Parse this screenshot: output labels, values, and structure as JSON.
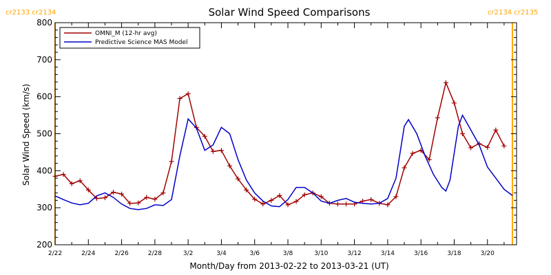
{
  "chart_data": {
    "type": "line",
    "title": "Solar Wind Speed Comparisons",
    "xlabel": "Month/Day from 2013-02-22 to 2013-03-21 (UT)",
    "ylabel": "Solar Wind Speed (km/s)",
    "x_domain": [
      "2013-02-22",
      "2013-03-21T18:00"
    ],
    "ylim": [
      200,
      800
    ],
    "yticks": [
      200,
      300,
      400,
      500,
      600,
      700,
      800
    ],
    "xticks": [
      {
        "date": "2013-02-22",
        "label": "2/22"
      },
      {
        "date": "2013-02-24",
        "label": "2/24"
      },
      {
        "date": "2013-02-26",
        "label": "2/26"
      },
      {
        "date": "2013-02-28",
        "label": "2/28"
      },
      {
        "date": "2013-03-02",
        "label": "3/2"
      },
      {
        "date": "2013-03-04",
        "label": "3/4"
      },
      {
        "date": "2013-03-06",
        "label": "3/6"
      },
      {
        "date": "2013-03-08",
        "label": "3/8"
      },
      {
        "date": "2013-03-10",
        "label": "3/10"
      },
      {
        "date": "2013-03-12",
        "label": "3/12"
      },
      {
        "date": "2013-03-14",
        "label": "3/14"
      },
      {
        "date": "2013-03-16",
        "label": "3/16"
      },
      {
        "date": "2013-03-18",
        "label": "3/18"
      },
      {
        "date": "2013-03-20",
        "label": "3/20"
      }
    ],
    "carrington_markers": [
      {
        "date": "2013-02-22",
        "left_label": "cr2133",
        "right_label": "cr2134",
        "label_side": "left"
      },
      {
        "date": "2013-03-21T12:00",
        "left_label": "cr2134",
        "right_label": "cr2135",
        "label_side": "right"
      }
    ],
    "legend": {
      "position": "top-left"
    },
    "series": [
      {
        "name": "OMNI_M (12-hr avg)",
        "color": "#a00000",
        "marker": "plus",
        "points": [
          [
            "2013-02-22T00:00",
            385
          ],
          [
            "2013-02-22T12:00",
            390
          ],
          [
            "2013-02-23T00:00",
            365
          ],
          [
            "2013-02-23T12:00",
            373
          ],
          [
            "2013-02-24T00:00",
            348
          ],
          [
            "2013-02-24T12:00",
            325
          ],
          [
            "2013-02-25T00:00",
            327
          ],
          [
            "2013-02-25T12:00",
            342
          ],
          [
            "2013-02-26T00:00",
            337
          ],
          [
            "2013-02-26T12:00",
            312
          ],
          [
            "2013-02-27T00:00",
            313
          ],
          [
            "2013-02-27T12:00",
            328
          ],
          [
            "2013-02-28T00:00",
            323
          ],
          [
            "2013-02-28T12:00",
            340
          ],
          [
            "2013-03-01T00:00",
            425
          ],
          [
            "2013-03-01T12:00",
            595
          ],
          [
            "2013-03-02T00:00",
            608
          ],
          [
            "2013-03-02T12:00",
            517
          ],
          [
            "2013-03-03T00:00",
            493
          ],
          [
            "2013-03-03T12:00",
            452
          ],
          [
            "2013-03-04T00:00",
            455
          ],
          [
            "2013-03-04T12:00",
            413
          ],
          [
            "2013-03-05T00:00",
            378
          ],
          [
            "2013-03-05T12:00",
            348
          ],
          [
            "2013-03-06T00:00",
            323
          ],
          [
            "2013-03-06T12:00",
            310
          ],
          [
            "2013-03-07T00:00",
            320
          ],
          [
            "2013-03-07T12:00",
            333
          ],
          [
            "2013-03-08T00:00",
            308
          ],
          [
            "2013-03-08T12:00",
            317
          ],
          [
            "2013-03-09T00:00",
            335
          ],
          [
            "2013-03-09T12:00",
            340
          ],
          [
            "2013-03-10T00:00",
            330
          ],
          [
            "2013-03-10T12:00",
            312
          ],
          [
            "2013-03-11T00:00",
            310
          ],
          [
            "2013-03-11T12:00",
            310
          ],
          [
            "2013-03-12T00:00",
            310
          ],
          [
            "2013-03-12T12:00",
            318
          ],
          [
            "2013-03-13T00:00",
            322
          ],
          [
            "2013-03-13T12:00",
            312
          ],
          [
            "2013-03-14T00:00",
            308
          ],
          [
            "2013-03-14T12:00",
            330
          ],
          [
            "2013-03-15T00:00",
            408
          ],
          [
            "2013-03-15T12:00",
            447
          ],
          [
            "2013-03-16T00:00",
            455
          ],
          [
            "2013-03-16T12:00",
            430
          ],
          [
            "2013-03-17T00:00",
            543
          ],
          [
            "2013-03-17T12:00",
            638
          ],
          [
            "2013-03-18T00:00",
            583
          ],
          [
            "2013-03-18T12:00",
            500
          ],
          [
            "2013-03-19T00:00",
            462
          ],
          [
            "2013-03-19T12:00",
            473
          ],
          [
            "2013-03-20T00:00",
            463
          ],
          [
            "2013-03-20T12:00",
            510
          ],
          [
            "2013-03-21T00:00",
            467
          ]
        ]
      },
      {
        "name": "Predictive Science MAS Model",
        "color": "#0000c8",
        "marker": "none",
        "points": [
          [
            "2013-02-22T00:00",
            332
          ],
          [
            "2013-02-22T12:00",
            322
          ],
          [
            "2013-02-23T00:00",
            313
          ],
          [
            "2013-02-23T12:00",
            308
          ],
          [
            "2013-02-24T00:00",
            312
          ],
          [
            "2013-02-24T12:00",
            332
          ],
          [
            "2013-02-25T00:00",
            340
          ],
          [
            "2013-02-25T12:00",
            328
          ],
          [
            "2013-02-26T00:00",
            310
          ],
          [
            "2013-02-26T12:00",
            298
          ],
          [
            "2013-02-27T00:00",
            295
          ],
          [
            "2013-02-27T12:00",
            298
          ],
          [
            "2013-02-28T00:00",
            308
          ],
          [
            "2013-02-28T12:00",
            306
          ],
          [
            "2013-03-01T00:00",
            322
          ],
          [
            "2013-03-01T12:00",
            440
          ],
          [
            "2013-03-02T00:00",
            540
          ],
          [
            "2013-03-02T12:00",
            515
          ],
          [
            "2013-03-03T00:00",
            455
          ],
          [
            "2013-03-03T12:00",
            470
          ],
          [
            "2013-03-04T00:00",
            517
          ],
          [
            "2013-03-04T12:00",
            500
          ],
          [
            "2013-03-05T00:00",
            430
          ],
          [
            "2013-03-05T12:00",
            375
          ],
          [
            "2013-03-06T00:00",
            340
          ],
          [
            "2013-03-06T12:00",
            318
          ],
          [
            "2013-03-07T00:00",
            305
          ],
          [
            "2013-03-07T12:00",
            303
          ],
          [
            "2013-03-08T00:00",
            322
          ],
          [
            "2013-03-08T12:00",
            355
          ],
          [
            "2013-03-09T00:00",
            355
          ],
          [
            "2013-03-09T12:00",
            340
          ],
          [
            "2013-03-10T00:00",
            318
          ],
          [
            "2013-03-10T12:00",
            312
          ],
          [
            "2013-03-11T00:00",
            320
          ],
          [
            "2013-03-11T12:00",
            325
          ],
          [
            "2013-03-12T00:00",
            315
          ],
          [
            "2013-03-12T12:00",
            312
          ],
          [
            "2013-03-13T00:00",
            310
          ],
          [
            "2013-03-13T12:00",
            312
          ],
          [
            "2013-03-14T00:00",
            325
          ],
          [
            "2013-03-14T12:00",
            380
          ],
          [
            "2013-03-15T00:00",
            520
          ],
          [
            "2013-03-15T06:00",
            538
          ],
          [
            "2013-03-15T18:00",
            500
          ],
          [
            "2013-03-16T06:00",
            440
          ],
          [
            "2013-03-16T18:00",
            390
          ],
          [
            "2013-03-17T06:00",
            355
          ],
          [
            "2013-03-17T12:00",
            345
          ],
          [
            "2013-03-17T18:00",
            375
          ],
          [
            "2013-03-18T06:00",
            520
          ],
          [
            "2013-03-18T12:00",
            550
          ],
          [
            "2013-03-18T18:00",
            530
          ],
          [
            "2013-03-19T12:00",
            470
          ],
          [
            "2013-03-20T00:00",
            410
          ],
          [
            "2013-03-20T12:00",
            380
          ],
          [
            "2013-03-21T00:00",
            350
          ],
          [
            "2013-03-21T12:00",
            333
          ]
        ]
      }
    ]
  }
}
